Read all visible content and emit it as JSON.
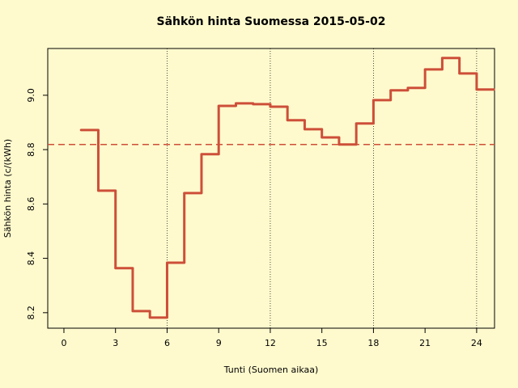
{
  "chart_data": {
    "type": "step",
    "title": "Sähkön hinta Suomessa 2015-05-02",
    "x_label": "Tunti (Suomen aikaa)",
    "y_label": "Sähkön hinta (c/(kWh)",
    "x": [
      1,
      2,
      3,
      4,
      5,
      6,
      7,
      8,
      9,
      10,
      11,
      12,
      13,
      14,
      15,
      16,
      17,
      18,
      19,
      20,
      21,
      22,
      23,
      24
    ],
    "series": [
      {
        "color": "#cd4f39",
        "values": [
          8.872,
          8.649,
          8.364,
          8.206,
          8.182,
          8.384,
          8.64,
          8.783,
          8.961,
          8.97,
          8.967,
          8.958,
          8.908,
          8.875,
          8.845,
          8.819,
          8.896,
          8.982,
          9.018,
          9.027,
          9.095,
          9.137,
          9.08,
          9.021
        ]
      }
    ],
    "mean_line": 8.819,
    "vlines": [
      6,
      12,
      18,
      24
    ],
    "xlim": [
      -0.94,
      25.04
    ],
    "ylim": [
      8.143,
      9.172
    ],
    "xticks": [
      0,
      3,
      6,
      9,
      12,
      15,
      18,
      21,
      24
    ],
    "yticks": [
      8.2,
      8.4,
      8.6,
      8.8,
      {
        "value": 9,
        "label": "9.0"
      }
    ]
  }
}
